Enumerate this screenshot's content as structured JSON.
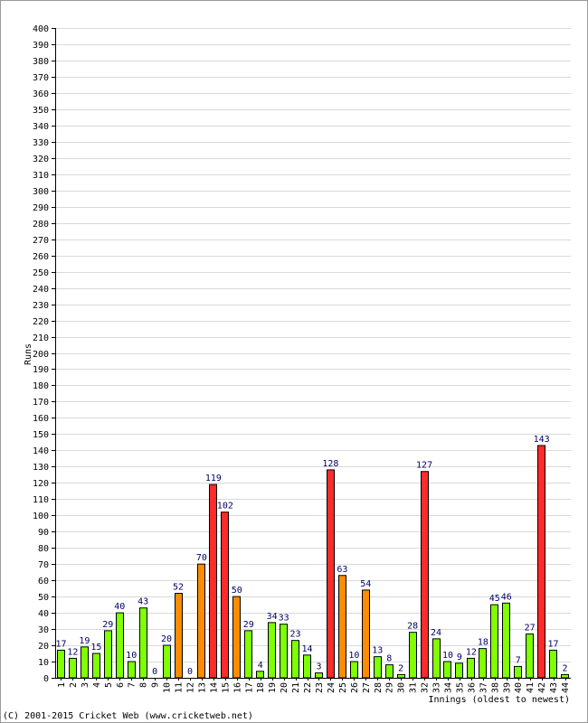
{
  "chart_data": {
    "type": "bar",
    "title": "",
    "ylabel": "Runs",
    "xlabel": "Innings (oldest to newest)",
    "ylim": [
      0,
      400
    ],
    "ytick_step": 10,
    "grid": true,
    "categories": [
      "1",
      "2",
      "3",
      "4",
      "5",
      "6",
      "7",
      "8",
      "9",
      "10",
      "11",
      "12",
      "13",
      "14",
      "15",
      "16",
      "17",
      "18",
      "19",
      "20",
      "21",
      "22",
      "23",
      "24",
      "25",
      "26",
      "27",
      "28",
      "29",
      "30",
      "31",
      "32",
      "33",
      "34",
      "35",
      "36",
      "37",
      "38",
      "39",
      "40",
      "41",
      "42",
      "43",
      "44"
    ],
    "values": [
      17,
      12,
      19,
      15,
      29,
      40,
      10,
      43,
      0,
      20,
      52,
      0,
      70,
      119,
      102,
      50,
      29,
      4,
      34,
      33,
      23,
      14,
      3,
      128,
      63,
      10,
      54,
      13,
      8,
      2,
      28,
      127,
      24,
      10,
      9,
      12,
      18,
      45,
      46,
      7,
      27,
      143,
      17,
      2
    ],
    "colors": {
      "under_50": "#80ff00",
      "fifty": "#ff8c00",
      "hundred": "#ff2a2a",
      "outline": "#000000",
      "grid": "#d9d9d9"
    }
  },
  "footer": {
    "copyright": "(C) 2001-2015 Cricket Web (www.cricketweb.net)"
  }
}
